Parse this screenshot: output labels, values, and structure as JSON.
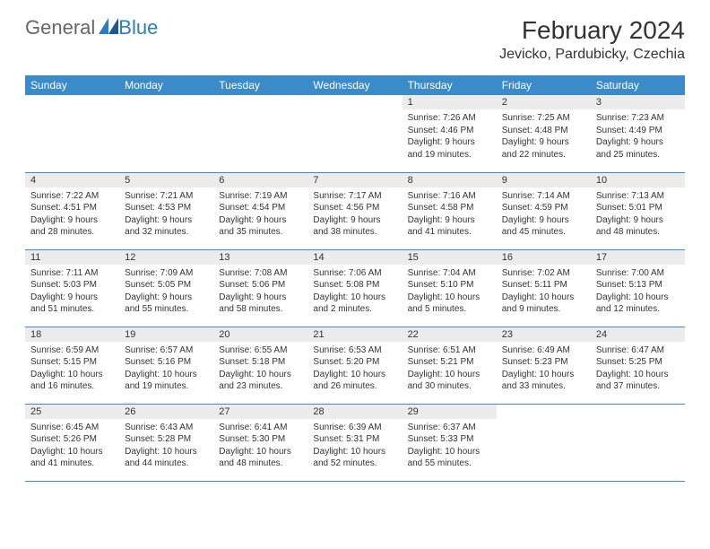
{
  "brand": {
    "part1": "General",
    "part2": "Blue"
  },
  "title": "February 2024",
  "location": "Jevicko, Pardubicky, Czechia",
  "colors": {
    "header_bg": "#3b8bc9",
    "header_text": "#ffffff",
    "daynum_bg": "#ececec",
    "rule": "#3b8bc9",
    "text": "#333333"
  },
  "day_names": [
    "Sunday",
    "Monday",
    "Tuesday",
    "Wednesday",
    "Thursday",
    "Friday",
    "Saturday"
  ],
  "weeks": [
    [
      null,
      null,
      null,
      null,
      {
        "n": "1",
        "sr": "Sunrise: 7:26 AM",
        "ss": "Sunset: 4:46 PM",
        "dl": "Daylight: 9 hours and 19 minutes."
      },
      {
        "n": "2",
        "sr": "Sunrise: 7:25 AM",
        "ss": "Sunset: 4:48 PM",
        "dl": "Daylight: 9 hours and 22 minutes."
      },
      {
        "n": "3",
        "sr": "Sunrise: 7:23 AM",
        "ss": "Sunset: 4:49 PM",
        "dl": "Daylight: 9 hours and 25 minutes."
      }
    ],
    [
      {
        "n": "4",
        "sr": "Sunrise: 7:22 AM",
        "ss": "Sunset: 4:51 PM",
        "dl": "Daylight: 9 hours and 28 minutes."
      },
      {
        "n": "5",
        "sr": "Sunrise: 7:21 AM",
        "ss": "Sunset: 4:53 PM",
        "dl": "Daylight: 9 hours and 32 minutes."
      },
      {
        "n": "6",
        "sr": "Sunrise: 7:19 AM",
        "ss": "Sunset: 4:54 PM",
        "dl": "Daylight: 9 hours and 35 minutes."
      },
      {
        "n": "7",
        "sr": "Sunrise: 7:17 AM",
        "ss": "Sunset: 4:56 PM",
        "dl": "Daylight: 9 hours and 38 minutes."
      },
      {
        "n": "8",
        "sr": "Sunrise: 7:16 AM",
        "ss": "Sunset: 4:58 PM",
        "dl": "Daylight: 9 hours and 41 minutes."
      },
      {
        "n": "9",
        "sr": "Sunrise: 7:14 AM",
        "ss": "Sunset: 4:59 PM",
        "dl": "Daylight: 9 hours and 45 minutes."
      },
      {
        "n": "10",
        "sr": "Sunrise: 7:13 AM",
        "ss": "Sunset: 5:01 PM",
        "dl": "Daylight: 9 hours and 48 minutes."
      }
    ],
    [
      {
        "n": "11",
        "sr": "Sunrise: 7:11 AM",
        "ss": "Sunset: 5:03 PM",
        "dl": "Daylight: 9 hours and 51 minutes."
      },
      {
        "n": "12",
        "sr": "Sunrise: 7:09 AM",
        "ss": "Sunset: 5:05 PM",
        "dl": "Daylight: 9 hours and 55 minutes."
      },
      {
        "n": "13",
        "sr": "Sunrise: 7:08 AM",
        "ss": "Sunset: 5:06 PM",
        "dl": "Daylight: 9 hours and 58 minutes."
      },
      {
        "n": "14",
        "sr": "Sunrise: 7:06 AM",
        "ss": "Sunset: 5:08 PM",
        "dl": "Daylight: 10 hours and 2 minutes."
      },
      {
        "n": "15",
        "sr": "Sunrise: 7:04 AM",
        "ss": "Sunset: 5:10 PM",
        "dl": "Daylight: 10 hours and 5 minutes."
      },
      {
        "n": "16",
        "sr": "Sunrise: 7:02 AM",
        "ss": "Sunset: 5:11 PM",
        "dl": "Daylight: 10 hours and 9 minutes."
      },
      {
        "n": "17",
        "sr": "Sunrise: 7:00 AM",
        "ss": "Sunset: 5:13 PM",
        "dl": "Daylight: 10 hours and 12 minutes."
      }
    ],
    [
      {
        "n": "18",
        "sr": "Sunrise: 6:59 AM",
        "ss": "Sunset: 5:15 PM",
        "dl": "Daylight: 10 hours and 16 minutes."
      },
      {
        "n": "19",
        "sr": "Sunrise: 6:57 AM",
        "ss": "Sunset: 5:16 PM",
        "dl": "Daylight: 10 hours and 19 minutes."
      },
      {
        "n": "20",
        "sr": "Sunrise: 6:55 AM",
        "ss": "Sunset: 5:18 PM",
        "dl": "Daylight: 10 hours and 23 minutes."
      },
      {
        "n": "21",
        "sr": "Sunrise: 6:53 AM",
        "ss": "Sunset: 5:20 PM",
        "dl": "Daylight: 10 hours and 26 minutes."
      },
      {
        "n": "22",
        "sr": "Sunrise: 6:51 AM",
        "ss": "Sunset: 5:21 PM",
        "dl": "Daylight: 10 hours and 30 minutes."
      },
      {
        "n": "23",
        "sr": "Sunrise: 6:49 AM",
        "ss": "Sunset: 5:23 PM",
        "dl": "Daylight: 10 hours and 33 minutes."
      },
      {
        "n": "24",
        "sr": "Sunrise: 6:47 AM",
        "ss": "Sunset: 5:25 PM",
        "dl": "Daylight: 10 hours and 37 minutes."
      }
    ],
    [
      {
        "n": "25",
        "sr": "Sunrise: 6:45 AM",
        "ss": "Sunset: 5:26 PM",
        "dl": "Daylight: 10 hours and 41 minutes."
      },
      {
        "n": "26",
        "sr": "Sunrise: 6:43 AM",
        "ss": "Sunset: 5:28 PM",
        "dl": "Daylight: 10 hours and 44 minutes."
      },
      {
        "n": "27",
        "sr": "Sunrise: 6:41 AM",
        "ss": "Sunset: 5:30 PM",
        "dl": "Daylight: 10 hours and 48 minutes."
      },
      {
        "n": "28",
        "sr": "Sunrise: 6:39 AM",
        "ss": "Sunset: 5:31 PM",
        "dl": "Daylight: 10 hours and 52 minutes."
      },
      {
        "n": "29",
        "sr": "Sunrise: 6:37 AM",
        "ss": "Sunset: 5:33 PM",
        "dl": "Daylight: 10 hours and 55 minutes."
      },
      null,
      null
    ]
  ]
}
